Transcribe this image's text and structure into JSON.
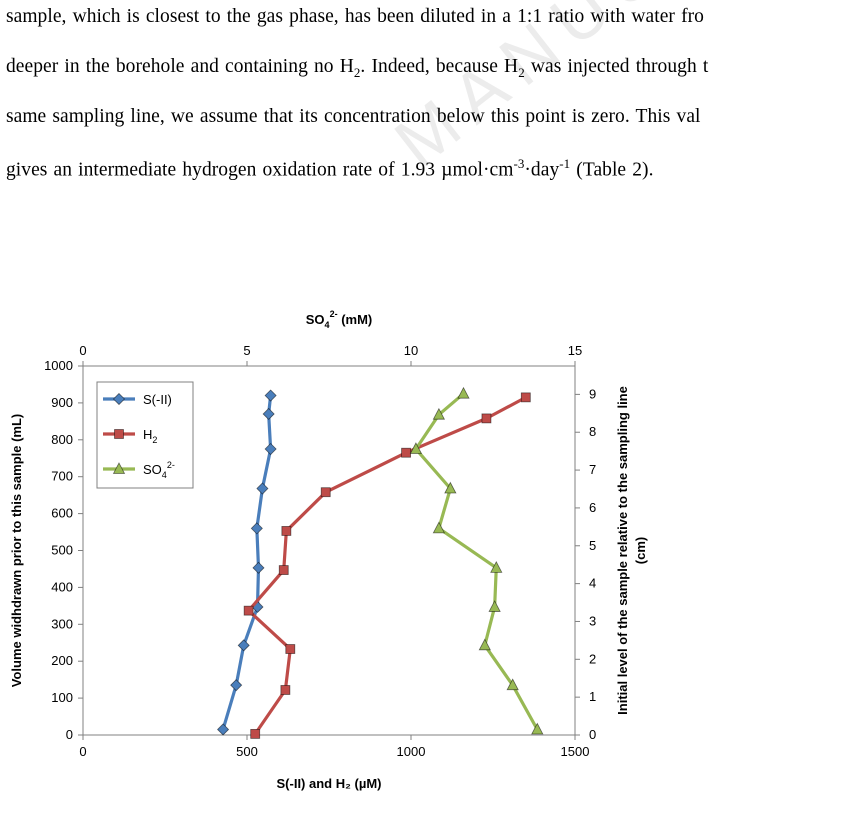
{
  "text_lines": [
    [
      "sample, which is closest to the gas phase, has been diluted in a 1:1 ratio with water fro"
    ],
    [
      "deeper in the borehole and containing no H",
      {
        "sub": "2"
      },
      ". Indeed, because H",
      {
        "sub": "2"
      },
      " was injected through t"
    ],
    [
      "same sampling line, we assume that its concentration below this point is zero. This val"
    ],
    [
      "gives an intermediate hydrogen oxidation rate of 1.93 µmol·cm",
      {
        "sup": "-3"
      },
      "·day",
      {
        "sup": "-1"
      },
      " (Table 2)."
    ]
  ],
  "watermark": "MANUSCRIPT",
  "chart_data": {
    "type": "line",
    "top_axis": {
      "label_main": "SO",
      "label_sub": "4",
      "label_sup": "2-",
      "label_suffix": " (mM)",
      "range": [
        0,
        15
      ],
      "ticks": [
        "0",
        "5",
        "10",
        "15"
      ]
    },
    "bottom_axis": {
      "label": "S(-II) and H₂ (µM)",
      "range": [
        0,
        1500
      ],
      "ticks": [
        "0",
        "500",
        "1000",
        "1500"
      ]
    },
    "left_axis": {
      "label": "Volume widhdrawn prior to this sample (mL)",
      "range": [
        0,
        1000
      ],
      "ticks": [
        "0",
        "100",
        "200",
        "300",
        "400",
        "500",
        "600",
        "700",
        "800",
        "900",
        "1000"
      ]
    },
    "right_axis": {
      "label_line1": "Initial level of the sample relative to the sampling line",
      "label_line2": "(cm)",
      "range": [
        0,
        9.75
      ],
      "ticks": [
        "0",
        "1",
        "2",
        "3",
        "4",
        "5",
        "6",
        "7",
        "8",
        "9"
      ]
    },
    "legend_position": "top-left",
    "grid": false,
    "series": [
      {
        "name": "S(-II)",
        "name_sup": "",
        "name_sub": "",
        "marker": "diamond",
        "color": "#4a7ebb",
        "x_axis": "bottom",
        "points": [
          [
            572,
            920
          ],
          [
            566,
            870
          ],
          [
            572,
            775
          ],
          [
            547,
            668
          ],
          [
            530,
            560
          ],
          [
            535,
            453
          ],
          [
            532,
            347
          ],
          [
            490,
            243
          ],
          [
            467,
            135
          ],
          [
            427,
            15
          ]
        ]
      },
      {
        "name": "H",
        "name_sup": "",
        "name_sub": "2",
        "marker": "square",
        "color": "#be4b48",
        "x_axis": "bottom",
        "points": [
          [
            1350,
            915
          ],
          [
            1230,
            858
          ],
          [
            985,
            765
          ],
          [
            740,
            658
          ],
          [
            620,
            553
          ],
          [
            612,
            447
          ],
          [
            505,
            337
          ],
          [
            632,
            233
          ],
          [
            617,
            122
          ],
          [
            525,
            3
          ]
        ]
      },
      {
        "name": "SO",
        "name_sup": "2-",
        "name_sub": "4",
        "marker": "triangle",
        "color": "#98b954",
        "x_axis": "top",
        "points": [
          [
            11.6,
            925
          ],
          [
            10.85,
            868
          ],
          [
            10.15,
            775
          ],
          [
            11.2,
            668
          ],
          [
            10.85,
            560
          ],
          [
            12.6,
            453
          ],
          [
            12.55,
            347
          ],
          [
            12.25,
            243
          ],
          [
            13.1,
            135
          ],
          [
            13.85,
            15
          ]
        ]
      }
    ]
  }
}
